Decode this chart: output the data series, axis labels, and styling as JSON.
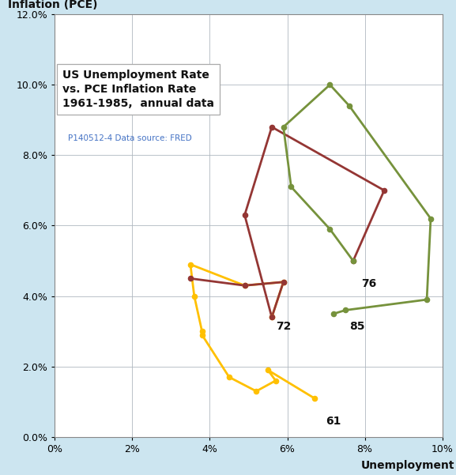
{
  "title": "US Unemployment Rate\nvs. PCE Inflation Rate\n1961-1985,  annual data",
  "subtitle": "P140512-4 Data source: FRED",
  "xlabel": "Unemployment",
  "ylabel": "Inflation (PCE)",
  "bg_color": "#cce5f0",
  "plot_bg": "#ffffff",
  "xlim": [
    0.0,
    0.1
  ],
  "ylim": [
    0.0,
    0.12
  ],
  "xticks": [
    0.0,
    0.02,
    0.04,
    0.06,
    0.08,
    0.1
  ],
  "yticks": [
    0.0,
    0.02,
    0.04,
    0.06,
    0.08,
    0.1,
    0.12
  ],
  "yellow_u": [
    0.067,
    0.055,
    0.057,
    0.052,
    0.045,
    0.038,
    0.038,
    0.036,
    0.035,
    0.049,
    0.059,
    0.056
  ],
  "yellow_i": [
    0.011,
    0.019,
    0.016,
    0.013,
    0.017,
    0.029,
    0.03,
    0.04,
    0.049,
    0.043,
    0.044,
    0.034
  ],
  "red_u": [
    0.035,
    0.049,
    0.059,
    0.056,
    0.049,
    0.056,
    0.085,
    0.077
  ],
  "red_i": [
    0.045,
    0.043,
    0.044,
    0.034,
    0.063,
    0.088,
    0.07,
    0.05
  ],
  "green_u": [
    0.077,
    0.071,
    0.061,
    0.059,
    0.071,
    0.076,
    0.097,
    0.096,
    0.075,
    0.072
  ],
  "green_i": [
    0.05,
    0.059,
    0.071,
    0.088,
    0.1,
    0.094,
    0.062,
    0.039,
    0.036,
    0.035
  ],
  "yellow_color": "#FFC000",
  "red_color": "#943634",
  "green_color": "#76923C",
  "label_72_u": 0.057,
  "label_72_i": 0.033,
  "label_61_u": 0.07,
  "label_61_i": 0.006,
  "label_76_u": 0.079,
  "label_76_i": 0.045,
  "label_85_u": 0.076,
  "label_85_i": 0.033,
  "annotation_fontsize": 10,
  "title_fontsize": 10,
  "subtitle_fontsize": 7.5,
  "axis_label_fontsize": 10
}
